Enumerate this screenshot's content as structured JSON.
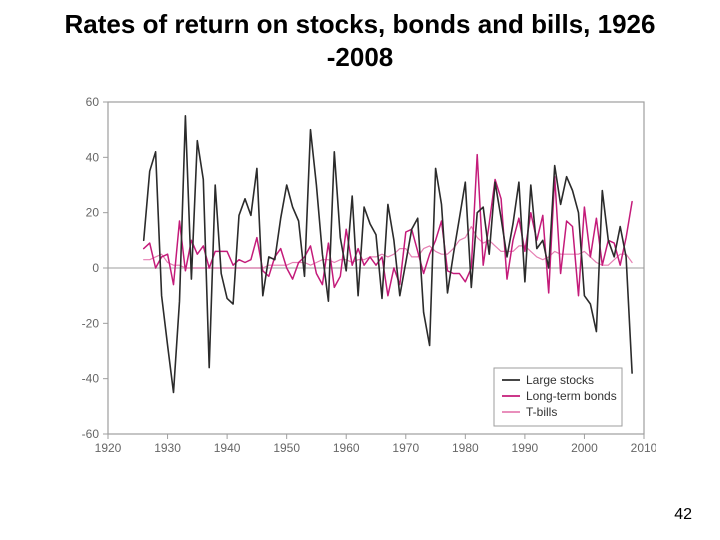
{
  "page": {
    "title": "Rates of return on stocks, bonds and bills, 1926 -2008",
    "number": "42"
  },
  "chart": {
    "type": "line",
    "background_color": "#ffffff",
    "plot_border_color": "#9e9e9e",
    "plot_border_width": 1.2,
    "zero_line_color": "#bdbdbd",
    "zero_line_width": 1.4,
    "tick_color": "#9e9e9e",
    "tick_font_size": 12,
    "tick_label_color": "#666666",
    "x": {
      "min": 1920,
      "max": 2010,
      "ticks": [
        1920,
        1930,
        1940,
        1950,
        1960,
        1970,
        1980,
        1990,
        2000,
        2010
      ]
    },
    "y": {
      "min": -60,
      "max": 60,
      "ticks": [
        -60,
        -40,
        -20,
        0,
        20,
        40,
        60
      ]
    },
    "legend": {
      "position": "bottom-right-inside",
      "box_color": "#9e9e9e",
      "box_fill": "#ffffff",
      "font_size": 12,
      "items": [
        {
          "label": "Large stocks",
          "color": "#2b2b2b"
        },
        {
          "label": "Long-term bonds",
          "color": "#c41b7a"
        },
        {
          "label": "T-bills",
          "color": "#e67fb3"
        }
      ]
    },
    "series": [
      {
        "name": "large-stocks",
        "color": "#2b2b2b",
        "width": 1.6,
        "points": [
          [
            1926,
            10
          ],
          [
            1927,
            35
          ],
          [
            1928,
            42
          ],
          [
            1929,
            -10
          ],
          [
            1930,
            -28
          ],
          [
            1931,
            -45
          ],
          [
            1932,
            -12
          ],
          [
            1933,
            55
          ],
          [
            1934,
            -4
          ],
          [
            1935,
            46
          ],
          [
            1936,
            32
          ],
          [
            1937,
            -36
          ],
          [
            1938,
            30
          ],
          [
            1939,
            -2
          ],
          [
            1940,
            -11
          ],
          [
            1941,
            -13
          ],
          [
            1942,
            19
          ],
          [
            1943,
            25
          ],
          [
            1944,
            19
          ],
          [
            1945,
            36
          ],
          [
            1946,
            -10
          ],
          [
            1947,
            4
          ],
          [
            1948,
            3
          ],
          [
            1949,
            18
          ],
          [
            1950,
            30
          ],
          [
            1951,
            22
          ],
          [
            1952,
            17
          ],
          [
            1953,
            -3
          ],
          [
            1954,
            50
          ],
          [
            1955,
            30
          ],
          [
            1956,
            5
          ],
          [
            1957,
            -12
          ],
          [
            1958,
            42
          ],
          [
            1959,
            11
          ],
          [
            1960,
            -1
          ],
          [
            1961,
            26
          ],
          [
            1962,
            -10
          ],
          [
            1963,
            22
          ],
          [
            1964,
            16
          ],
          [
            1965,
            12
          ],
          [
            1966,
            -11
          ],
          [
            1967,
            23
          ],
          [
            1968,
            10
          ],
          [
            1969,
            -10
          ],
          [
            1970,
            2
          ],
          [
            1971,
            14
          ],
          [
            1972,
            18
          ],
          [
            1973,
            -16
          ],
          [
            1974,
            -28
          ],
          [
            1975,
            36
          ],
          [
            1976,
            23
          ],
          [
            1977,
            -9
          ],
          [
            1978,
            5
          ],
          [
            1979,
            18
          ],
          [
            1980,
            31
          ],
          [
            1981,
            -7
          ],
          [
            1982,
            20
          ],
          [
            1983,
            22
          ],
          [
            1984,
            5
          ],
          [
            1985,
            31
          ],
          [
            1986,
            18
          ],
          [
            1987,
            4
          ],
          [
            1988,
            16
          ],
          [
            1989,
            31
          ],
          [
            1990,
            -5
          ],
          [
            1991,
            30
          ],
          [
            1992,
            7
          ],
          [
            1993,
            10
          ],
          [
            1994,
            0
          ],
          [
            1995,
            37
          ],
          [
            1996,
            23
          ],
          [
            1997,
            33
          ],
          [
            1998,
            28
          ],
          [
            1999,
            20
          ],
          [
            2000,
            -10
          ],
          [
            2001,
            -13
          ],
          [
            2002,
            -23
          ],
          [
            2003,
            28
          ],
          [
            2004,
            10
          ],
          [
            2005,
            4
          ],
          [
            2006,
            15
          ],
          [
            2007,
            4
          ],
          [
            2008,
            -38
          ]
        ]
      },
      {
        "name": "long-term-bonds",
        "color": "#c41b7a",
        "width": 1.5,
        "points": [
          [
            1926,
            7
          ],
          [
            1927,
            9
          ],
          [
            1928,
            0
          ],
          [
            1929,
            4
          ],
          [
            1930,
            5
          ],
          [
            1931,
            -6
          ],
          [
            1932,
            17
          ],
          [
            1933,
            -1
          ],
          [
            1934,
            10
          ],
          [
            1935,
            5
          ],
          [
            1936,
            8
          ],
          [
            1937,
            0
          ],
          [
            1938,
            6
          ],
          [
            1939,
            6
          ],
          [
            1940,
            6
          ],
          [
            1941,
            1
          ],
          [
            1942,
            3
          ],
          [
            1943,
            2
          ],
          [
            1944,
            3
          ],
          [
            1945,
            11
          ],
          [
            1946,
            -1
          ],
          [
            1947,
            -3
          ],
          [
            1948,
            4
          ],
          [
            1949,
            7
          ],
          [
            1950,
            0
          ],
          [
            1951,
            -4
          ],
          [
            1952,
            2
          ],
          [
            1953,
            4
          ],
          [
            1954,
            8
          ],
          [
            1955,
            -2
          ],
          [
            1956,
            -6
          ],
          [
            1957,
            9
          ],
          [
            1958,
            -7
          ],
          [
            1959,
            -3
          ],
          [
            1960,
            14
          ],
          [
            1961,
            1
          ],
          [
            1962,
            7
          ],
          [
            1963,
            1
          ],
          [
            1964,
            4
          ],
          [
            1965,
            1
          ],
          [
            1966,
            4
          ],
          [
            1967,
            -10
          ],
          [
            1968,
            0
          ],
          [
            1969,
            -6
          ],
          [
            1970,
            13
          ],
          [
            1971,
            14
          ],
          [
            1972,
            6
          ],
          [
            1973,
            -2
          ],
          [
            1974,
            5
          ],
          [
            1975,
            10
          ],
          [
            1976,
            17
          ],
          [
            1977,
            -1
          ],
          [
            1978,
            -2
          ],
          [
            1979,
            -2
          ],
          [
            1980,
            -5
          ],
          [
            1981,
            0
          ],
          [
            1982,
            41
          ],
          [
            1983,
            1
          ],
          [
            1984,
            16
          ],
          [
            1985,
            32
          ],
          [
            1986,
            25
          ],
          [
            1987,
            -4
          ],
          [
            1988,
            10
          ],
          [
            1989,
            18
          ],
          [
            1990,
            6
          ],
          [
            1991,
            20
          ],
          [
            1992,
            10
          ],
          [
            1993,
            19
          ],
          [
            1994,
            -9
          ],
          [
            1995,
            33
          ],
          [
            1996,
            -2
          ],
          [
            1997,
            17
          ],
          [
            1998,
            15
          ],
          [
            1999,
            -10
          ],
          [
            2000,
            22
          ],
          [
            2001,
            4
          ],
          [
            2002,
            18
          ],
          [
            2003,
            1
          ],
          [
            2004,
            10
          ],
          [
            2005,
            9
          ],
          [
            2006,
            1
          ],
          [
            2007,
            11
          ],
          [
            2008,
            24
          ]
        ]
      },
      {
        "name": "t-bills",
        "color": "#e67fb3",
        "width": 1.2,
        "points": [
          [
            1926,
            3
          ],
          [
            1927,
            3
          ],
          [
            1928,
            4
          ],
          [
            1929,
            5
          ],
          [
            1930,
            2
          ],
          [
            1931,
            1
          ],
          [
            1932,
            1
          ],
          [
            1933,
            0
          ],
          [
            1934,
            0
          ],
          [
            1935,
            0
          ],
          [
            1936,
            0
          ],
          [
            1937,
            0
          ],
          [
            1938,
            0
          ],
          [
            1939,
            0
          ],
          [
            1940,
            0
          ],
          [
            1941,
            0
          ],
          [
            1942,
            0
          ],
          [
            1943,
            0
          ],
          [
            1944,
            0
          ],
          [
            1945,
            0
          ],
          [
            1946,
            0
          ],
          [
            1947,
            1
          ],
          [
            1948,
            1
          ],
          [
            1949,
            1
          ],
          [
            1950,
            1
          ],
          [
            1951,
            2
          ],
          [
            1952,
            2
          ],
          [
            1953,
            2
          ],
          [
            1954,
            1
          ],
          [
            1955,
            2
          ],
          [
            1956,
            3
          ],
          [
            1957,
            3
          ],
          [
            1958,
            2
          ],
          [
            1959,
            3
          ],
          [
            1960,
            3
          ],
          [
            1961,
            2
          ],
          [
            1962,
            3
          ],
          [
            1963,
            3
          ],
          [
            1964,
            4
          ],
          [
            1965,
            4
          ],
          [
            1966,
            5
          ],
          [
            1967,
            4
          ],
          [
            1968,
            5
          ],
          [
            1969,
            7
          ],
          [
            1970,
            7
          ],
          [
            1971,
            4
          ],
          [
            1972,
            4
          ],
          [
            1973,
            7
          ],
          [
            1974,
            8
          ],
          [
            1975,
            6
          ],
          [
            1976,
            5
          ],
          [
            1977,
            5
          ],
          [
            1978,
            7
          ],
          [
            1979,
            10
          ],
          [
            1980,
            11
          ],
          [
            1981,
            15
          ],
          [
            1982,
            11
          ],
          [
            1983,
            9
          ],
          [
            1984,
            10
          ],
          [
            1985,
            8
          ],
          [
            1986,
            6
          ],
          [
            1987,
            6
          ],
          [
            1988,
            6
          ],
          [
            1989,
            8
          ],
          [
            1990,
            8
          ],
          [
            1991,
            6
          ],
          [
            1992,
            4
          ],
          [
            1993,
            3
          ],
          [
            1994,
            4
          ],
          [
            1995,
            6
          ],
          [
            1996,
            5
          ],
          [
            1997,
            5
          ],
          [
            1998,
            5
          ],
          [
            1999,
            5
          ],
          [
            2000,
            6
          ],
          [
            2001,
            4
          ],
          [
            2002,
            2
          ],
          [
            2003,
            1
          ],
          [
            2004,
            1
          ],
          [
            2005,
            3
          ],
          [
            2006,
            5
          ],
          [
            2007,
            5
          ],
          [
            2008,
            2
          ]
        ]
      }
    ]
  }
}
